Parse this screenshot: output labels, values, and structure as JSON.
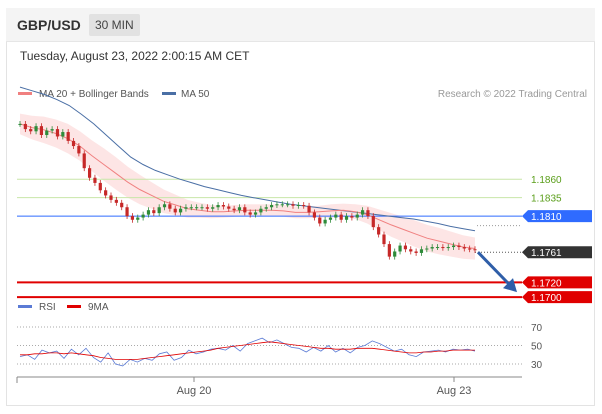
{
  "header": {
    "pair": "GBP/USD",
    "timeframe": "30 MIN"
  },
  "timestamp": "Tuesday, August 23, 2022 2:00:15 AM CET",
  "credit": "Research © 2022 Trading Central",
  "colors": {
    "up": "#2e8b3a",
    "down": "#c62828",
    "ma20": "#f08080",
    "ma50": "#4a6fa5",
    "band": "#fde0e0",
    "support": "#e00000",
    "resistance": "#8bc34a",
    "pivot": "#2f6bff",
    "arrow": "#2f5ea8",
    "rsi": "#5b7bd5",
    "rsi_ma": "#e00000"
  },
  "chart_data": [
    {
      "type": "line",
      "title": "",
      "legend": [
        {
          "name": "MA 20 + Bollinger Bands",
          "color": "#f08080"
        },
        {
          "name": "MA 50",
          "color": "#4a6fa5"
        }
      ],
      "legend_placement": "top-left",
      "x_ticks": [
        "Aug 20",
        "Aug 23"
      ],
      "ylim": [
        1.165,
        1.199
      ],
      "price": [
        1.1935,
        1.1928,
        1.1925,
        1.1932,
        1.192,
        1.1926,
        1.1928,
        1.1918,
        1.1924,
        1.1912,
        1.1905,
        1.1895,
        1.1875,
        1.1862,
        1.1855,
        1.1845,
        1.1838,
        1.1832,
        1.1828,
        1.1822,
        1.181,
        1.1805,
        1.1808,
        1.1812,
        1.1818,
        1.1814,
        1.1822,
        1.1826,
        1.182,
        1.1815,
        1.182,
        1.1822,
        1.1822,
        1.1822,
        1.1822,
        1.182,
        1.1822,
        1.1825,
        1.1823,
        1.182,
        1.1818,
        1.1822,
        1.1815,
        1.1812,
        1.1815,
        1.182,
        1.1822,
        1.1825,
        1.1826,
        1.1826,
        1.1826,
        1.1824,
        1.1825,
        1.1824,
        1.1815,
        1.1808,
        1.18,
        1.1805,
        1.1808,
        1.1812,
        1.1805,
        1.181,
        1.1808,
        1.1812,
        1.1818,
        1.181,
        1.1795,
        1.1785,
        1.1772,
        1.1755,
        1.1762,
        1.177,
        1.1765,
        1.1762,
        1.176,
        1.1765,
        1.1766,
        1.1768,
        1.1768,
        1.1767,
        1.1768,
        1.177,
        1.1768,
        1.1766,
        1.1765,
        1.1764
      ],
      "ma20": [
        1.1935,
        1.193,
        1.1927,
        1.1922,
        1.1915,
        1.1905,
        1.1892,
        1.188,
        1.1868,
        1.1856,
        1.1846,
        1.1838,
        1.183,
        1.1825,
        1.182,
        1.1818,
        1.1816,
        1.1816,
        1.1817,
        1.1818,
        1.1818,
        1.1818,
        1.1817,
        1.1815,
        1.1815,
        1.1816,
        1.1817,
        1.1818,
        1.1816,
        1.1812,
        1.1805,
        1.1798,
        1.1792,
        1.1786,
        1.178,
        1.1776,
        1.1772,
        1.1768,
        1.1766
      ],
      "ma50": [
        1.1985,
        1.198,
        1.1975,
        1.1968,
        1.196,
        1.1948,
        1.1935,
        1.192,
        1.1905,
        1.189,
        1.188,
        1.1872,
        1.1866,
        1.186,
        1.1855,
        1.185,
        1.1846,
        1.1842,
        1.1838,
        1.1835,
        1.1832,
        1.1829,
        1.1826,
        1.1824,
        1.1822,
        1.182,
        1.1818,
        1.1816,
        1.1814,
        1.1812,
        1.181,
        1.1808,
        1.1806,
        1.1803,
        1.18,
        1.1796,
        1.1793,
        1.179
      ],
      "lines": [
        {
          "label": "1.1860",
          "value": 1.186,
          "color": "#8bc34a"
        },
        {
          "label": "1.1835",
          "value": 1.1835,
          "color": "#8bc34a"
        },
        {
          "label": "1.1810",
          "value": 1.181,
          "color": "#2f6bff"
        },
        {
          "label": "1.1761",
          "value": 1.1761,
          "color": "#333333"
        },
        {
          "label": "1.1720",
          "value": 1.172,
          "color": "#e00000"
        },
        {
          "label": "1.1700",
          "value": 1.17,
          "color": "#e00000"
        }
      ],
      "forecast_arrow": {
        "from": 1.1761,
        "to": 1.1715
      }
    },
    {
      "type": "line",
      "title": "",
      "legend": [
        {
          "name": "RSI",
          "color": "#5b7bd5"
        },
        {
          "name": "9MA",
          "color": "#e00000"
        }
      ],
      "ylim": [
        20,
        80
      ],
      "y_ticks": [
        "70",
        "50",
        "30"
      ],
      "rsi": [
        38,
        40,
        35,
        45,
        42,
        44,
        36,
        46,
        40,
        47,
        37,
        32,
        42,
        30,
        28,
        35,
        32,
        36,
        34,
        41,
        43,
        34,
        37,
        45,
        41,
        43,
        46,
        47,
        45,
        50,
        44,
        52,
        55,
        58,
        53,
        56,
        52,
        48,
        47,
        43,
        48,
        44,
        50,
        43,
        47,
        42,
        48,
        50,
        55,
        52,
        48,
        44,
        46,
        40,
        38,
        43,
        44,
        45,
        43,
        46,
        45,
        46,
        44
      ],
      "rsi_ma": [
        40,
        40,
        41,
        41,
        42,
        42,
        41,
        42,
        41,
        40,
        39,
        37,
        36,
        35,
        35,
        35,
        35,
        36,
        37,
        38,
        39,
        40,
        41,
        42,
        43,
        44,
        45,
        47,
        48,
        49,
        50,
        51,
        52,
        53,
        54,
        53,
        52,
        51,
        50,
        49,
        48,
        47,
        47,
        46,
        46,
        46,
        47,
        47,
        47,
        46,
        45,
        44,
        43,
        42,
        42,
        43,
        43,
        44,
        44,
        45,
        45,
        45,
        45
      ]
    }
  ]
}
